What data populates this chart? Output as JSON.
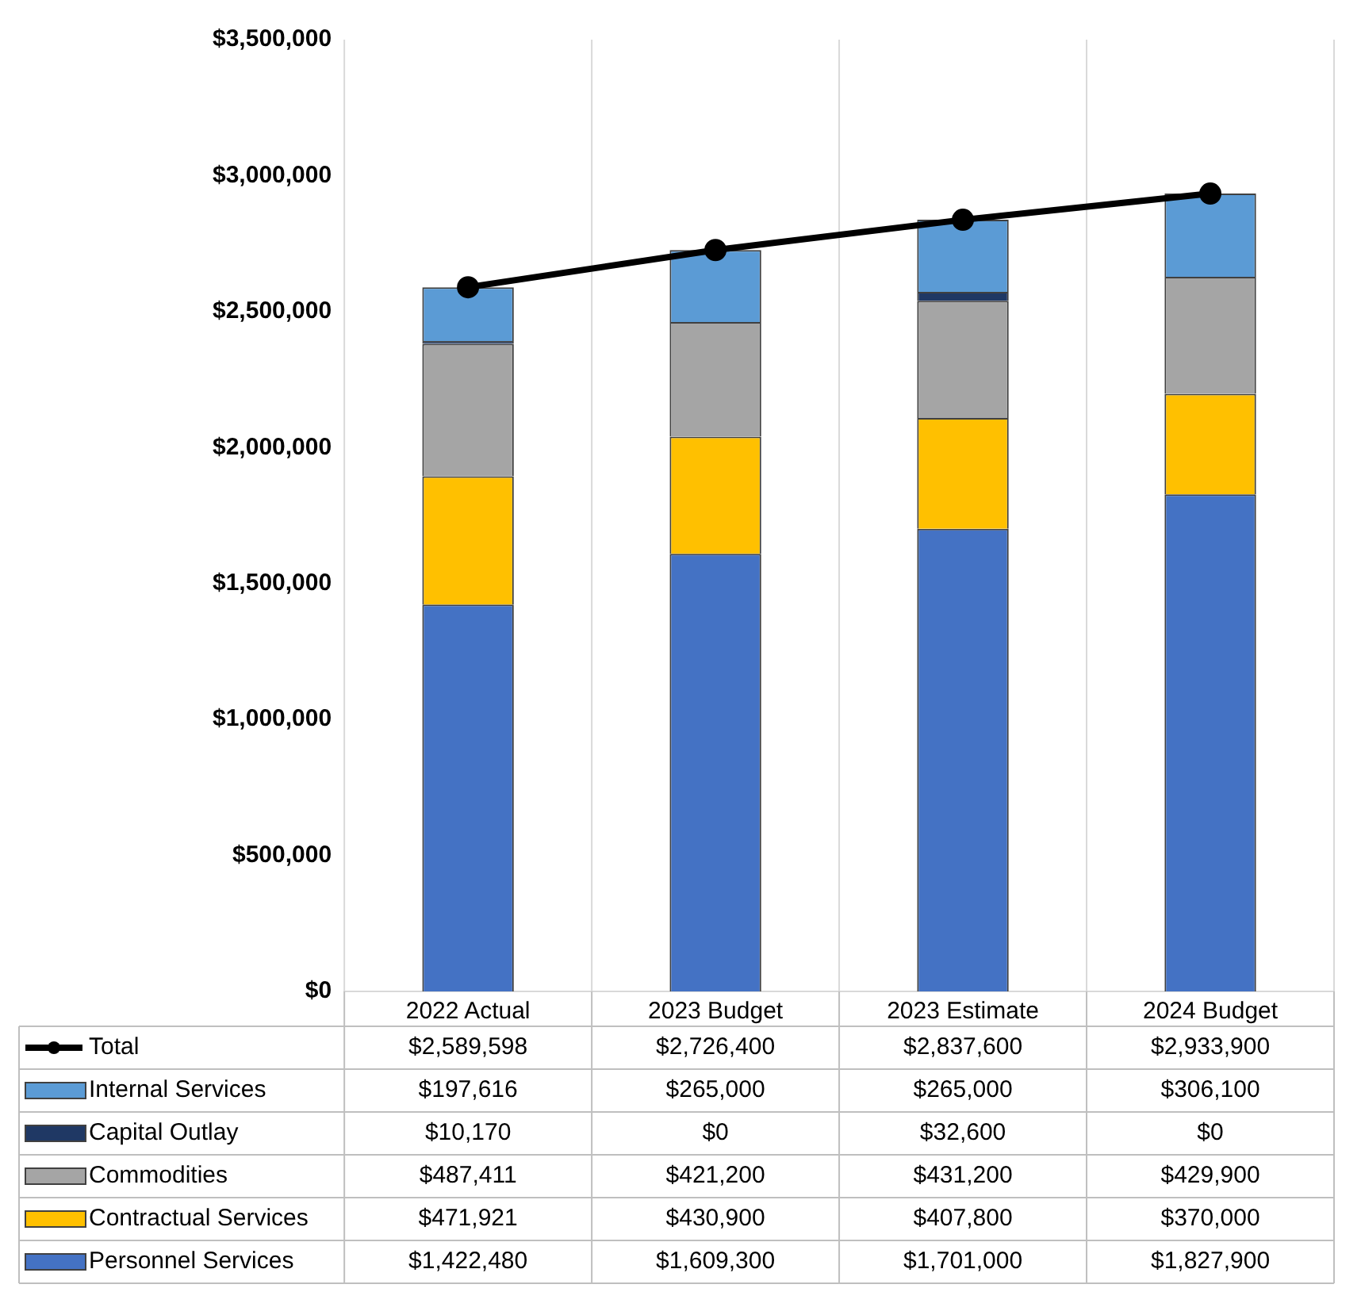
{
  "chart_data": {
    "type": "bar",
    "stacked": true,
    "categories": [
      "2022 Actual",
      "2023 Budget",
      "2023 Estimate",
      "2024 Budget"
    ],
    "series": [
      {
        "name": "Personnel Services",
        "color": "#4472c4",
        "values": [
          1422480,
          1609300,
          1701000,
          1827900
        ],
        "value_labels": [
          "$1,422,480",
          "$1,609,300",
          "$1,701,000",
          "$1,827,900"
        ]
      },
      {
        "name": "Contractual Services",
        "color": "#ffc000",
        "values": [
          471921,
          430900,
          407800,
          370000
        ],
        "value_labels": [
          "$471,921",
          "$430,900",
          "$407,800",
          "$370,000"
        ]
      },
      {
        "name": "Commodities",
        "color": "#a5a5a5",
        "values": [
          487411,
          421200,
          431200,
          429900
        ],
        "value_labels": [
          "$487,411",
          "$421,200",
          "$431,200",
          "$429,900"
        ]
      },
      {
        "name": "Capital Outlay",
        "color": "#1f3864",
        "values": [
          10170,
          0,
          32600,
          0
        ],
        "value_labels": [
          "$10,170",
          "$0",
          "$32,600",
          "$0"
        ]
      },
      {
        "name": "Internal Services",
        "color": "#5b9bd5",
        "values": [
          197616,
          265000,
          265000,
          306100
        ],
        "value_labels": [
          "$197,616",
          "$265,000",
          "$265,000",
          "$306,100"
        ]
      },
      {
        "name": "Total",
        "type": "line",
        "color": "#000000",
        "values": [
          2589598,
          2726400,
          2837600,
          2933900
        ],
        "value_labels": [
          "$2,589,598",
          "$2,726,400",
          "$2,837,600",
          "$2,933,900"
        ]
      }
    ],
    "ylim": [
      0,
      3500000
    ],
    "yticks": [
      {
        "value": 0,
        "label": "$0"
      },
      {
        "value": 500000,
        "label": "$500,000"
      },
      {
        "value": 1000000,
        "label": "$1,000,000"
      },
      {
        "value": 1500000,
        "label": "$1,500,000"
      },
      {
        "value": 2000000,
        "label": "$2,000,000"
      },
      {
        "value": 2500000,
        "label": "$2,500,000"
      },
      {
        "value": 3000000,
        "label": "$3,000,000"
      },
      {
        "value": 3500000,
        "label": "$3,500,000"
      }
    ],
    "grid": "x",
    "legend": "bottom",
    "marker": "circle",
    "line_style": "solid"
  }
}
